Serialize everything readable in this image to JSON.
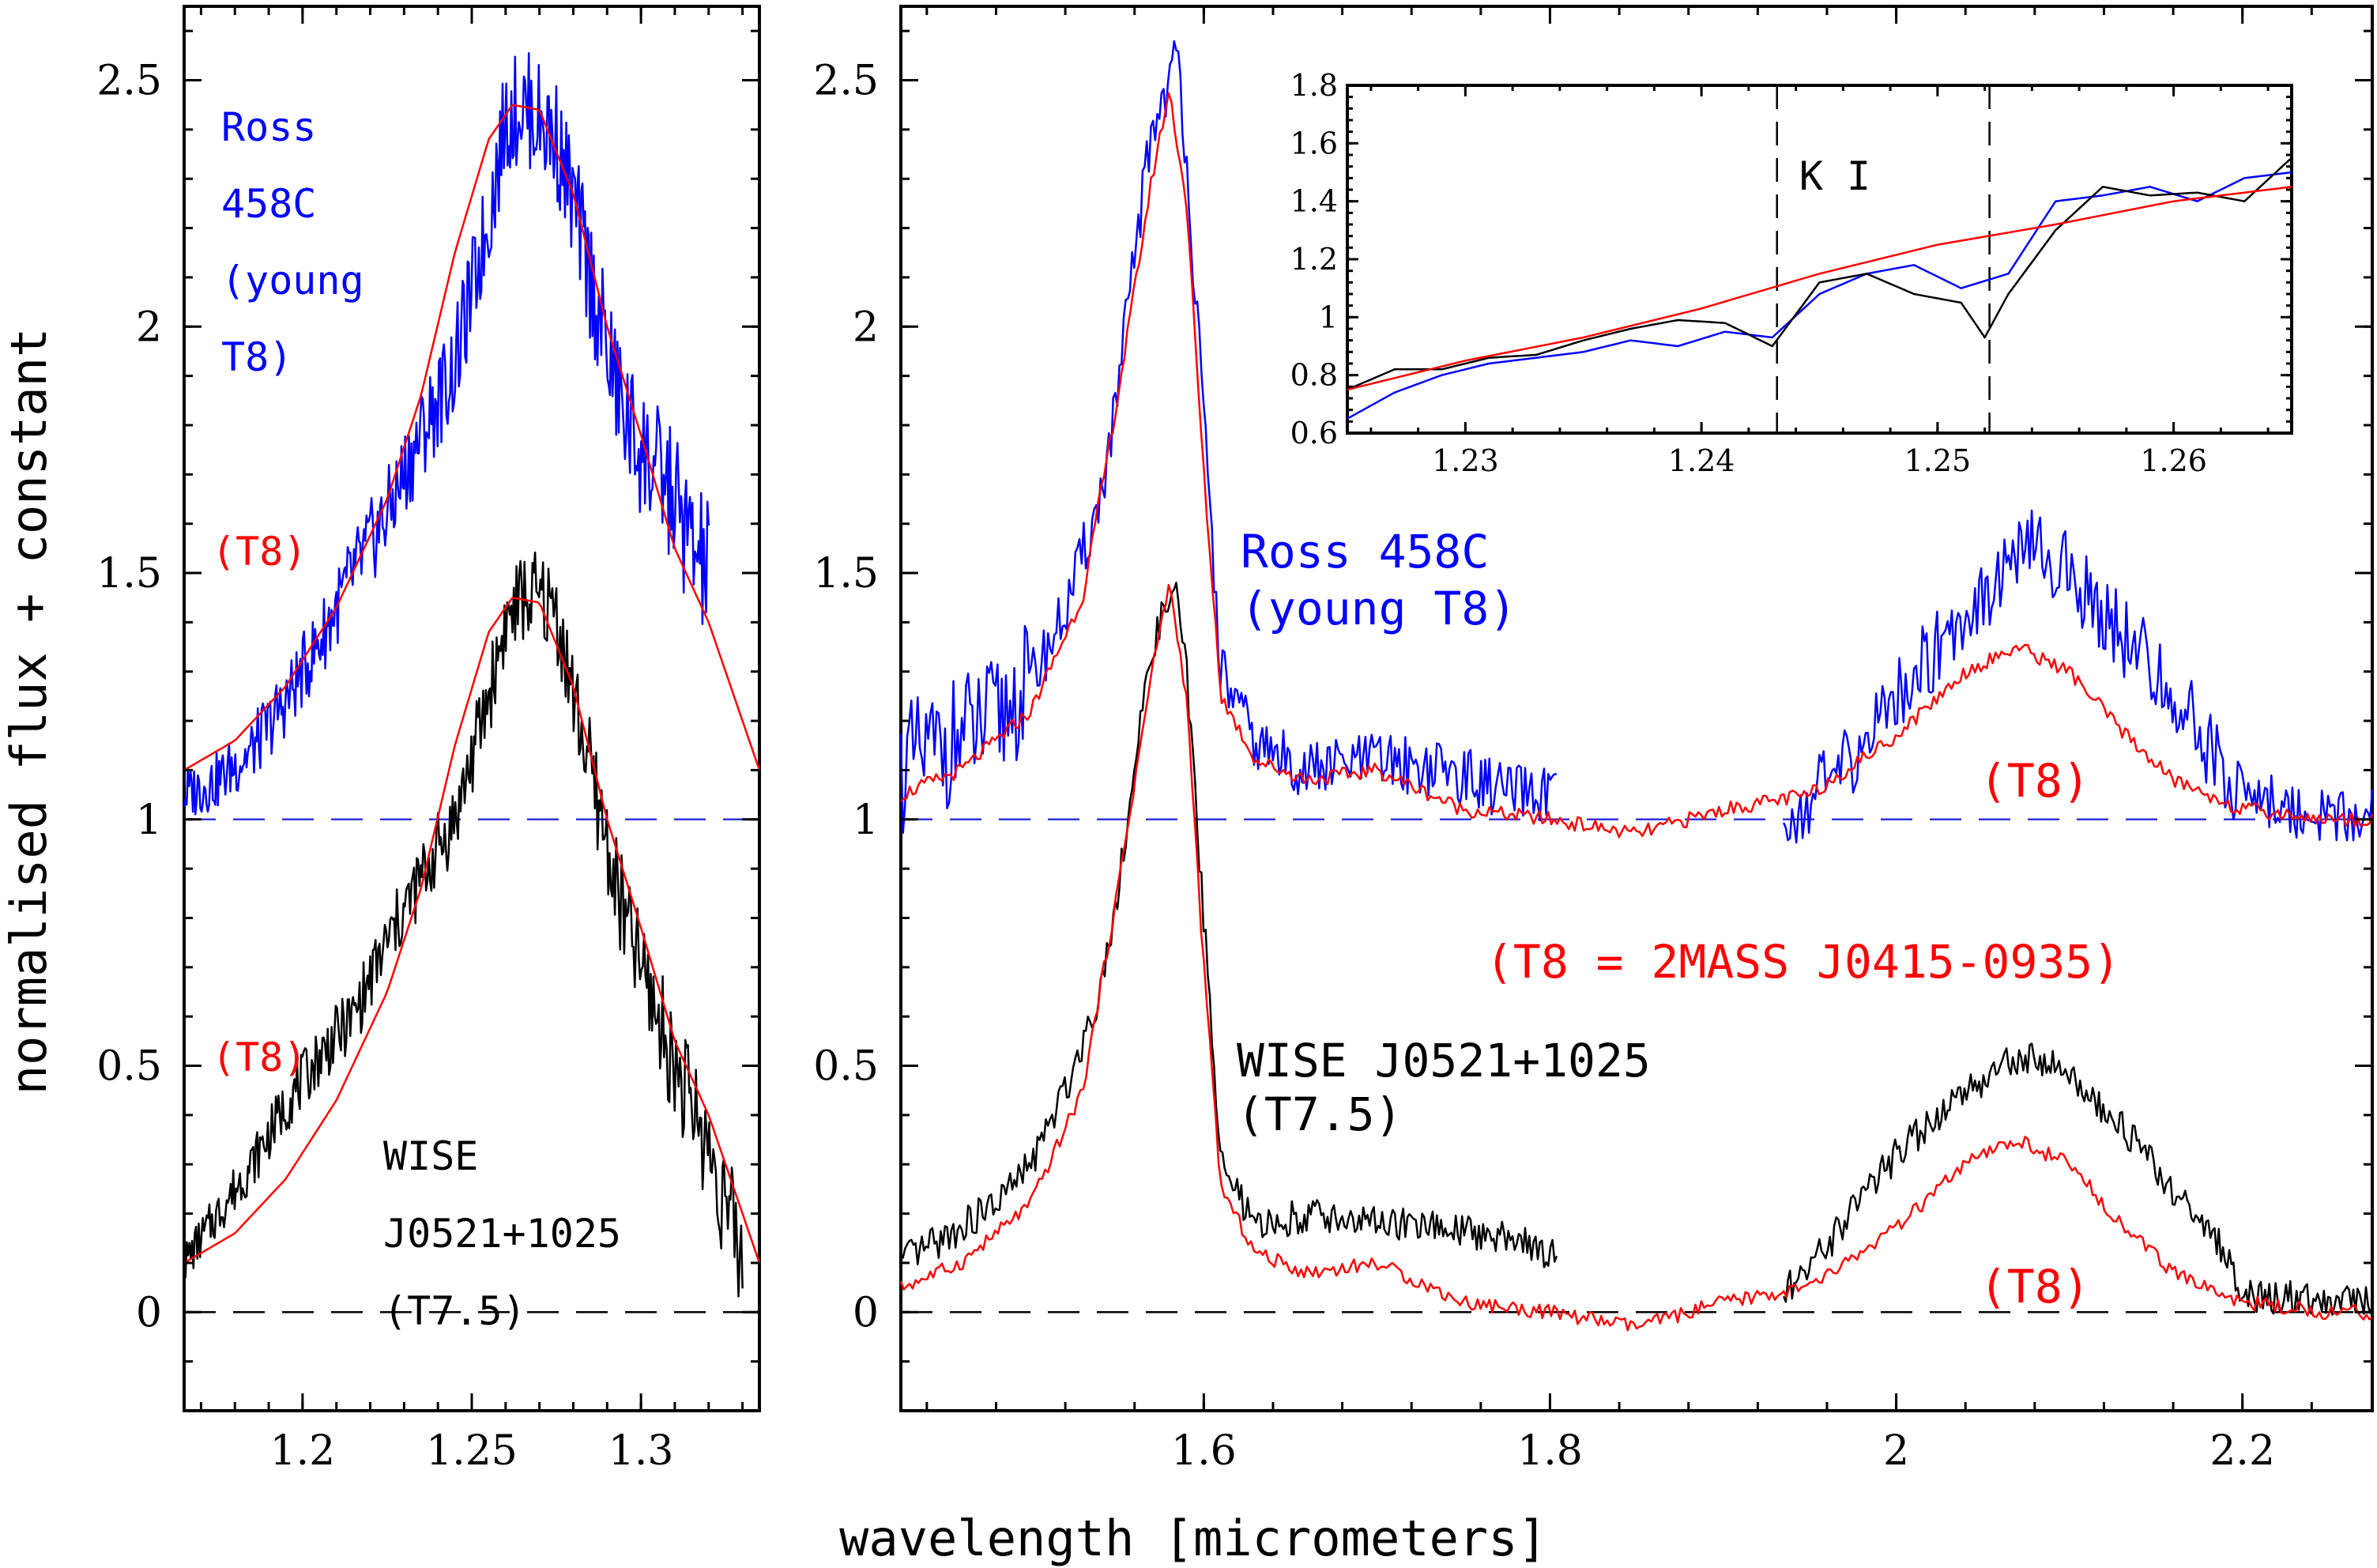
{
  "colors": {
    "ross": "#0000ff",
    "wise": "#000000",
    "template": "#ff0000",
    "zero_line": "#000000",
    "unity_line": "#3333dd"
  },
  "axes": {
    "xlabel": "wavelength [micrometers]",
    "ylabel": "normalised flux + constant"
  },
  "left_panel": {
    "xlim": [
      1.165,
      1.335
    ],
    "ylim": [
      -0.2,
      2.65
    ],
    "xticks": [
      "1.2",
      "1.25",
      "1.3"
    ],
    "xtick_values": [
      1.2,
      1.25,
      1.3
    ],
    "yticks": [
      "0",
      "0.5",
      "1",
      "1.5",
      "2",
      "2.5"
    ],
    "ytick_values": [
      0,
      0.5,
      1,
      1.5,
      2,
      2.5
    ],
    "ross_label": [
      "Ross",
      "458C",
      "(young",
      "T8)"
    ],
    "t8_label_top": "(T8)",
    "t8_label_bottom": "(T8)",
    "wise_label": [
      "WISE",
      "J0521+1025",
      "(T7.5)"
    ]
  },
  "main_panel": {
    "xlim": [
      1.425,
      2.275
    ],
    "ylim": [
      -0.2,
      2.65
    ],
    "xticks": [
      "1.6",
      "1.8",
      "2",
      "2.2"
    ],
    "xtick_values": [
      1.6,
      1.8,
      2.0,
      2.2
    ],
    "yticks": [
      "0",
      "0.5",
      "1",
      "1.5",
      "2",
      "2.5"
    ],
    "ytick_values": [
      0,
      0.5,
      1,
      1.5,
      2,
      2.5
    ],
    "ross_label": [
      "Ross 458C",
      "(young T8)"
    ],
    "t8_label_upper": "(T8)",
    "t8_label_lower": "(T8)",
    "t8_identity": "(T8 = 2MASS J0415-0935)",
    "wise_label": [
      "WISE J0521+1025",
      "(T7.5)"
    ]
  },
  "inset": {
    "xlim": [
      1.225,
      1.265
    ],
    "ylim": [
      0.6,
      1.8
    ],
    "xticks": [
      "1.23",
      "1.24",
      "1.25",
      "1.26"
    ],
    "xtick_values": [
      1.23,
      1.24,
      1.25,
      1.26
    ],
    "yticks": [
      "0.6",
      "0.8",
      "1",
      "1.2",
      "1.4",
      "1.6",
      "1.8"
    ],
    "ytick_values": [
      0.6,
      0.8,
      1.0,
      1.2,
      1.4,
      1.6,
      1.8
    ],
    "ki_label": "K I",
    "ki_lines": [
      1.2432,
      1.2522
    ]
  },
  "chart_data": [
    {
      "type": "line",
      "panel": "left",
      "title": "",
      "xlabel": "wavelength [micrometers]",
      "ylabel": "normalised flux + constant",
      "series": [
        {
          "name": "Ross 458C (young T8)",
          "color": "#0000ff",
          "x": [
            1.165,
            1.175,
            1.185,
            1.195,
            1.205,
            1.215,
            1.225,
            1.235,
            1.245,
            1.255,
            1.26,
            1.265,
            1.27,
            1.275,
            1.28,
            1.285,
            1.29,
            1.295,
            1.3,
            1.305,
            1.31,
            1.315,
            1.32
          ],
          "y": [
            1.05,
            1.08,
            1.14,
            1.24,
            1.36,
            1.5,
            1.62,
            1.78,
            1.92,
            2.22,
            2.42,
            2.45,
            2.42,
            2.38,
            2.25,
            2.1,
            1.95,
            1.82,
            1.75,
            1.7,
            1.65,
            1.55,
            1.5
          ]
        },
        {
          "name": "T8 template (upper)",
          "color": "#ff0000",
          "x": [
            1.165,
            1.18,
            1.195,
            1.21,
            1.225,
            1.235,
            1.245,
            1.255,
            1.262,
            1.27,
            1.28,
            1.29,
            1.3,
            1.31,
            1.32,
            1.335
          ],
          "y": [
            1.1,
            1.16,
            1.27,
            1.43,
            1.65,
            1.86,
            2.15,
            2.38,
            2.45,
            2.44,
            2.27,
            2.0,
            1.78,
            1.55,
            1.4,
            1.1
          ]
        },
        {
          "name": "WISE J0521+1025 (T7.5)",
          "color": "#000000",
          "x": [
            1.165,
            1.175,
            1.185,
            1.195,
            1.205,
            1.215,
            1.225,
            1.235,
            1.245,
            1.255,
            1.26,
            1.265,
            1.27,
            1.275,
            1.28,
            1.285,
            1.29,
            1.295,
            1.3,
            1.305,
            1.31,
            1.315,
            1.32,
            1.325,
            1.33
          ],
          "y": [
            0.1,
            0.2,
            0.3,
            0.42,
            0.52,
            0.6,
            0.75,
            0.88,
            1.0,
            1.25,
            1.4,
            1.45,
            1.45,
            1.42,
            1.25,
            1.1,
            0.95,
            0.8,
            0.7,
            0.6,
            0.5,
            0.42,
            0.33,
            0.22,
            0.1
          ]
        },
        {
          "name": "T8 template (lower)",
          "color": "#ff0000",
          "x": [
            1.165,
            1.18,
            1.195,
            1.21,
            1.225,
            1.235,
            1.245,
            1.255,
            1.262,
            1.27,
            1.28,
            1.29,
            1.3,
            1.31,
            1.32,
            1.335
          ],
          "y": [
            0.1,
            0.16,
            0.27,
            0.43,
            0.65,
            0.86,
            1.15,
            1.38,
            1.45,
            1.44,
            1.27,
            1.0,
            0.78,
            0.55,
            0.4,
            0.1
          ]
        }
      ],
      "hlines": [
        {
          "y": 1,
          "style": "dashed",
          "color": "#3333dd"
        },
        {
          "y": 0,
          "style": "dashed",
          "color": "#000000"
        }
      ]
    },
    {
      "type": "line",
      "panel": "main",
      "series": [
        {
          "name": "Ross 458C (young T8)",
          "color": "#0000ff",
          "x": [
            1.425,
            1.45,
            1.48,
            1.5,
            1.52,
            1.54,
            1.55,
            1.56,
            1.57,
            1.58,
            1.585,
            1.59,
            1.6,
            1.61,
            1.63,
            1.66,
            1.7,
            1.74,
            1.78,
            1.8,
            1.94,
            1.97,
            2.0,
            2.03,
            2.06,
            2.08,
            2.1,
            2.13,
            2.16,
            2.19,
            2.2,
            2.23,
            2.26,
            2.275
          ],
          "y": [
            1.1,
            1.15,
            1.2,
            1.28,
            1.42,
            1.65,
            1.85,
            2.15,
            2.4,
            2.5,
            2.55,
            2.35,
            1.8,
            1.3,
            1.15,
            1.1,
            1.12,
            1.1,
            1.05,
            1.05,
            1.0,
            1.1,
            1.25,
            1.38,
            1.5,
            1.55,
            1.5,
            1.38,
            1.25,
            1.1,
            1.05,
            1.02,
            1.0,
            1.02
          ]
        },
        {
          "name": "T8 template (upper)",
          "color": "#ff0000",
          "x": [
            1.425,
            1.46,
            1.5,
            1.53,
            1.55,
            1.57,
            1.58,
            1.59,
            1.6,
            1.61,
            1.63,
            1.66,
            1.7,
            1.75,
            1.8,
            1.85,
            1.9,
            1.95,
            2.0,
            2.04,
            2.07,
            2.1,
            2.13,
            2.16,
            2.2,
            2.25,
            2.275
          ],
          "y": [
            1.05,
            1.1,
            1.22,
            1.45,
            1.85,
            2.3,
            2.48,
            2.25,
            1.7,
            1.25,
            1.12,
            1.08,
            1.1,
            1.02,
            1.0,
            0.97,
            1.02,
            1.05,
            1.17,
            1.3,
            1.35,
            1.3,
            1.18,
            1.08,
            1.02,
            1.0,
            1.0
          ]
        },
        {
          "name": "WISE J0521+1025 (T7.5)",
          "color": "#000000",
          "x": [
            1.425,
            1.45,
            1.48,
            1.5,
            1.52,
            1.54,
            1.55,
            1.56,
            1.57,
            1.58,
            1.585,
            1.59,
            1.6,
            1.61,
            1.63,
            1.66,
            1.7,
            1.74,
            1.78,
            1.8,
            1.94,
            1.97,
            2.0,
            2.03,
            2.06,
            2.08,
            2.1,
            2.13,
            2.16,
            2.19,
            2.2,
            2.23,
            2.26,
            2.275
          ],
          "y": [
            0.1,
            0.15,
            0.22,
            0.3,
            0.45,
            0.65,
            0.85,
            1.1,
            1.35,
            1.45,
            1.45,
            1.3,
            0.8,
            0.3,
            0.17,
            0.2,
            0.18,
            0.17,
            0.15,
            0.12,
            0.05,
            0.18,
            0.32,
            0.42,
            0.5,
            0.52,
            0.48,
            0.38,
            0.25,
            0.12,
            0.03,
            0.03,
            0.02,
            0.02
          ]
        },
        {
          "name": "T8 template (lower)",
          "color": "#ff0000",
          "x": [
            1.425,
            1.46,
            1.5,
            1.53,
            1.55,
            1.57,
            1.58,
            1.59,
            1.6,
            1.61,
            1.63,
            1.66,
            1.7,
            1.75,
            1.8,
            1.85,
            1.9,
            1.95,
            2.0,
            2.04,
            2.07,
            2.1,
            2.13,
            2.16,
            2.2,
            2.25,
            2.275
          ],
          "y": [
            0.05,
            0.1,
            0.22,
            0.45,
            0.85,
            1.3,
            1.48,
            1.25,
            0.7,
            0.25,
            0.12,
            0.08,
            0.1,
            0.02,
            0.0,
            -0.03,
            0.02,
            0.05,
            0.17,
            0.3,
            0.35,
            0.3,
            0.18,
            0.08,
            0.02,
            0.0,
            0.0
          ]
        }
      ],
      "hlines": [
        {
          "y": 1,
          "style": "dashed",
          "color": "#3333dd"
        },
        {
          "y": 0,
          "style": "dashed",
          "color": "#000000"
        }
      ]
    },
    {
      "type": "line",
      "panel": "inset",
      "series": [
        {
          "name": "Ross 458C",
          "color": "#0000ff",
          "x": [
            1.225,
            1.227,
            1.229,
            1.231,
            1.233,
            1.235,
            1.237,
            1.239,
            1.241,
            1.243,
            1.245,
            1.247,
            1.249,
            1.251,
            1.253,
            1.255,
            1.257,
            1.259,
            1.261,
            1.263,
            1.265
          ],
          "y": [
            0.65,
            0.74,
            0.8,
            0.84,
            0.86,
            0.88,
            0.92,
            0.9,
            0.95,
            0.93,
            1.08,
            1.15,
            1.18,
            1.1,
            1.15,
            1.4,
            1.42,
            1.45,
            1.4,
            1.48,
            1.5
          ]
        },
        {
          "name": "WISE J0521+1025",
          "color": "#000000",
          "x": [
            1.225,
            1.227,
            1.229,
            1.231,
            1.233,
            1.235,
            1.237,
            1.239,
            1.241,
            1.243,
            1.245,
            1.247,
            1.249,
            1.251,
            1.252,
            1.253,
            1.255,
            1.257,
            1.259,
            1.261,
            1.263,
            1.265
          ],
          "y": [
            0.75,
            0.82,
            0.82,
            0.86,
            0.87,
            0.92,
            0.96,
            0.99,
            0.98,
            0.9,
            1.12,
            1.15,
            1.08,
            1.05,
            0.93,
            1.08,
            1.3,
            1.45,
            1.42,
            1.43,
            1.4,
            1.55
          ]
        },
        {
          "name": "T8 template",
          "color": "#ff0000",
          "x": [
            1.225,
            1.23,
            1.235,
            1.24,
            1.245,
            1.25,
            1.255,
            1.26,
            1.265
          ],
          "y": [
            0.75,
            0.85,
            0.93,
            1.03,
            1.15,
            1.25,
            1.32,
            1.4,
            1.45
          ]
        }
      ],
      "vlines": [
        1.2432,
        1.2522
      ]
    }
  ]
}
